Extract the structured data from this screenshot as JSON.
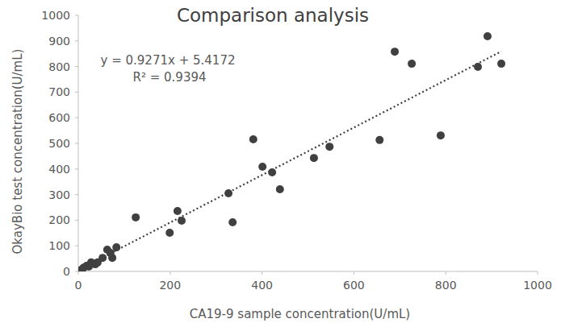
{
  "chart_data": {
    "type": "scatter",
    "title": "Comparison analysis",
    "x_label": "CA19-9 sample concentration(U/mL)",
    "y_label": "OkayBio test concentration(U/mL)",
    "annotations": [
      "y = 0.9271x + 5.4172",
      "R² = 0.9394"
    ],
    "trendline": {
      "slope": 0.9271,
      "intercept": 5.4172
    },
    "x": [
      0,
      5,
      10,
      12,
      18,
      23,
      28,
      33,
      37,
      42,
      53,
      63,
      70,
      74,
      83,
      125,
      199,
      216,
      225,
      327,
      336,
      381,
      401,
      422,
      439,
      513,
      547,
      656,
      689,
      726,
      789,
      870,
      891,
      921
    ],
    "values": [
      0,
      5,
      12,
      15,
      22,
      19,
      35,
      31,
      28,
      35,
      53,
      85,
      72,
      53,
      94,
      211,
      151,
      236,
      198,
      305,
      192,
      516,
      409,
      387,
      321,
      443,
      487,
      513,
      858,
      811,
      531,
      799,
      918,
      811
    ],
    "color": "#404040",
    "marker": "circle",
    "xlim": [
      0,
      1000
    ],
    "xticks": [
      0,
      200,
      400,
      600,
      800,
      1000
    ],
    "ylim": [
      0,
      1000
    ],
    "yticks": [
      0,
      100,
      200,
      300,
      400,
      500,
      600,
      700,
      800,
      900,
      1000
    ],
    "grid": false
  }
}
